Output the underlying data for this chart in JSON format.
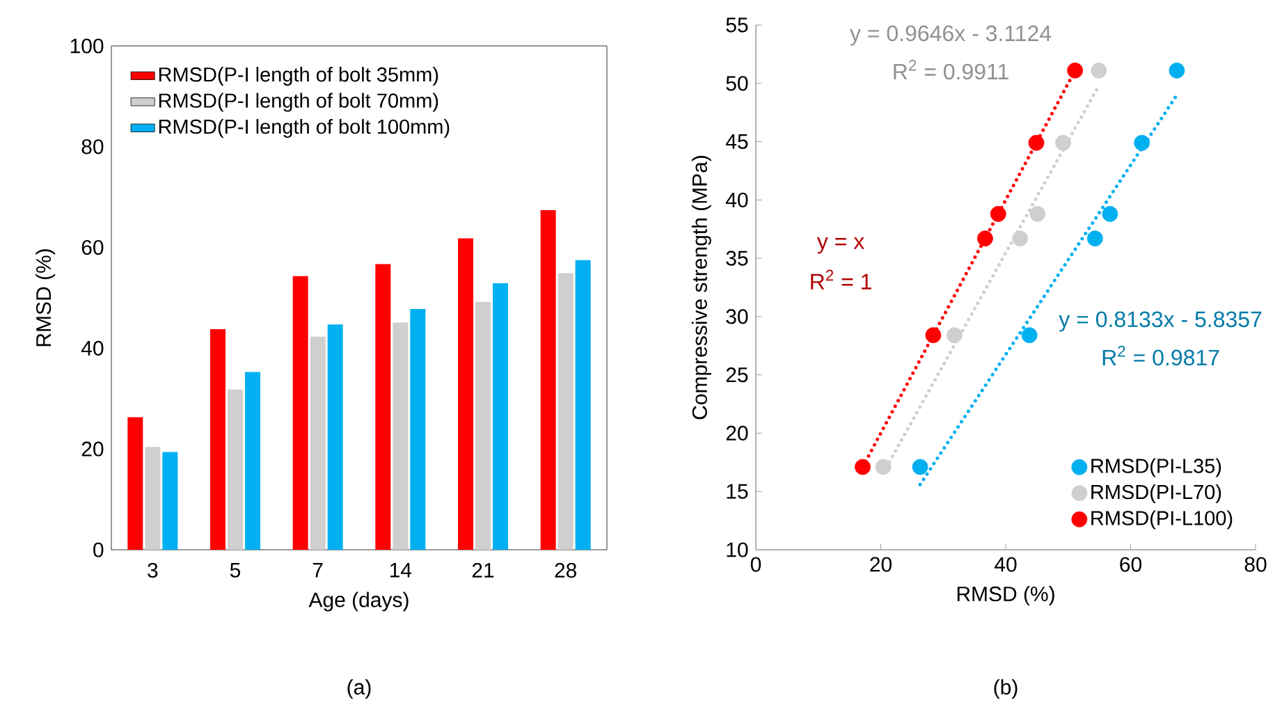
{
  "chart_data": [
    {
      "type": "bar",
      "xlabel": "Age (days)",
      "ylabel": "RMSD (%)",
      "categories": [
        "3",
        "5",
        "7",
        "14",
        "21",
        "28"
      ],
      "ylim": [
        0,
        100
      ],
      "yticks": [
        0,
        20,
        40,
        60,
        80,
        100
      ],
      "legend": "top left",
      "annotations": [
        "(a)"
      ],
      "series": [
        {
          "name": "RMSD(P-I length of bolt 35mm)",
          "color": "#ff0000",
          "values": [
            26.3,
            43.8,
            54.3,
            56.7,
            61.8,
            67.4
          ]
        },
        {
          "name": "RMSD(P-I length of bolt 70mm)",
          "color": "#d0cece",
          "values": [
            20.4,
            31.8,
            42.3,
            45.1,
            49.2,
            54.9
          ]
        },
        {
          "name": "RMSD(P-I length of bolt 100mm)",
          "color": "#00b0f0",
          "values": [
            19.4,
            35.3,
            44.7,
            47.8,
            52.9,
            57.5
          ]
        }
      ]
    },
    {
      "type": "scatter",
      "xlabel": "RMSD (%)",
      "ylabel": "Compressive strength (MPa)",
      "xlim": [
        0,
        80
      ],
      "xticks": [
        0,
        20,
        40,
        60,
        80
      ],
      "ylim": [
        10,
        55
      ],
      "yticks": [
        10,
        15,
        20,
        25,
        30,
        35,
        40,
        45,
        50,
        55
      ],
      "legend": "bottom right",
      "marker": "circle",
      "annotations": [
        "y = 0.8133x - 5.8357",
        "R$^{2}$ = 0.9817",
        "y = 0.9646x - 3.1124",
        "R$^{2}$ = 0.9911",
        "y = x",
        "R$^{2}$ = 1",
        "(b)"
      ],
      "series": [
        {
          "name": "RMSD(PI-L35)",
          "color": "#00b0f0",
          "x": [
            26.3,
            43.8,
            54.3,
            56.7,
            61.8,
            67.4
          ],
          "values": [
            17.1,
            28.4,
            36.7,
            38.8,
            44.9,
            51.1
          ]
        },
        {
          "name": "RMSD(PI-L70)",
          "color": "#d0cece",
          "x": [
            20.4,
            31.8,
            42.3,
            45.1,
            49.2,
            54.9
          ],
          "values": [
            17.1,
            28.4,
            36.7,
            38.8,
            44.9,
            51.1
          ]
        },
        {
          "name": "RMSD(PI-L100)",
          "color": "#ff0000",
          "x": [
            17.1,
            28.4,
            36.7,
            38.8,
            44.9,
            51.1
          ],
          "values": [
            17.1,
            28.4,
            36.7,
            38.8,
            44.9,
            51.1
          ]
        },
        {
          "type": "line",
          "line_style": "dotted",
          "marker": "none",
          "color": "#00b0f0",
          "x": [
            26.3,
            67.4
          ],
          "values": [
            15.6,
            49.0
          ]
        },
        {
          "type": "line",
          "line_style": "dotted",
          "marker": "none",
          "color": "#d0cece",
          "x": [
            20.4,
            54.9
          ],
          "values": [
            16.6,
            49.8
          ]
        },
        {
          "type": "line",
          "line_style": "dotted",
          "marker": "none",
          "color": "#ff0000",
          "x": [
            17.1,
            51.1
          ],
          "values": [
            17.1,
            51.1
          ]
        }
      ]
    }
  ]
}
